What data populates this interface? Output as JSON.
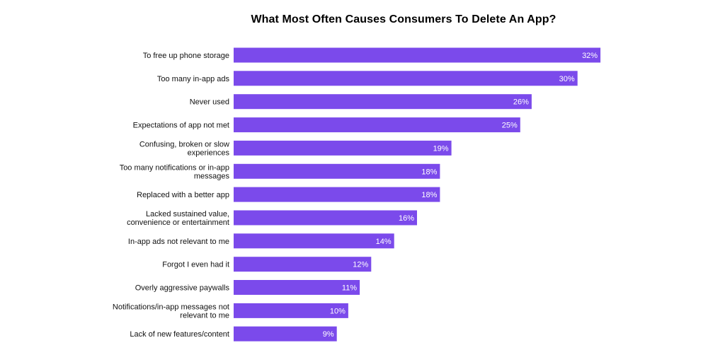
{
  "title": "What Most Often Causes Consumers To Delete An App?",
  "colors": {
    "bar": "#7B4AEB",
    "label_text": "#111111",
    "value_text": "#ffffff"
  },
  "chart_data": {
    "type": "bar",
    "orientation": "horizontal",
    "title": "What Most Often Causes Consumers To Delete An App?",
    "xlabel": "",
    "ylabel": "",
    "xlim": [
      0,
      32
    ],
    "grid": false,
    "legend": "none",
    "value_format": "{v}%",
    "categories": [
      [
        "To free up phone storage"
      ],
      [
        "Too many in-app ads"
      ],
      [
        "Never used"
      ],
      [
        "Expectations of app not met"
      ],
      [
        "Confusing, broken or slow",
        "experiences"
      ],
      [
        "Too many notifications or in-app",
        "messages"
      ],
      [
        "Replaced with a better app"
      ],
      [
        "Lacked sustained value,",
        "convenience or entertainment"
      ],
      [
        "In-app ads not relevant to me"
      ],
      [
        "Forgot I even had it"
      ],
      [
        "Overly aggressive paywalls"
      ],
      [
        "Notifications/in-app messages not",
        "relevant to me"
      ],
      [
        "Lack of new features/content"
      ]
    ],
    "values": [
      32,
      30,
      26,
      25,
      19,
      18,
      18,
      16,
      14,
      12,
      11,
      10,
      9
    ],
    "value_labels": [
      "32%",
      "30%",
      "26%",
      "25%",
      "19%",
      "18%",
      "18%",
      "16%",
      "14%",
      "12%",
      "11%",
      "10%",
      "9%"
    ]
  }
}
